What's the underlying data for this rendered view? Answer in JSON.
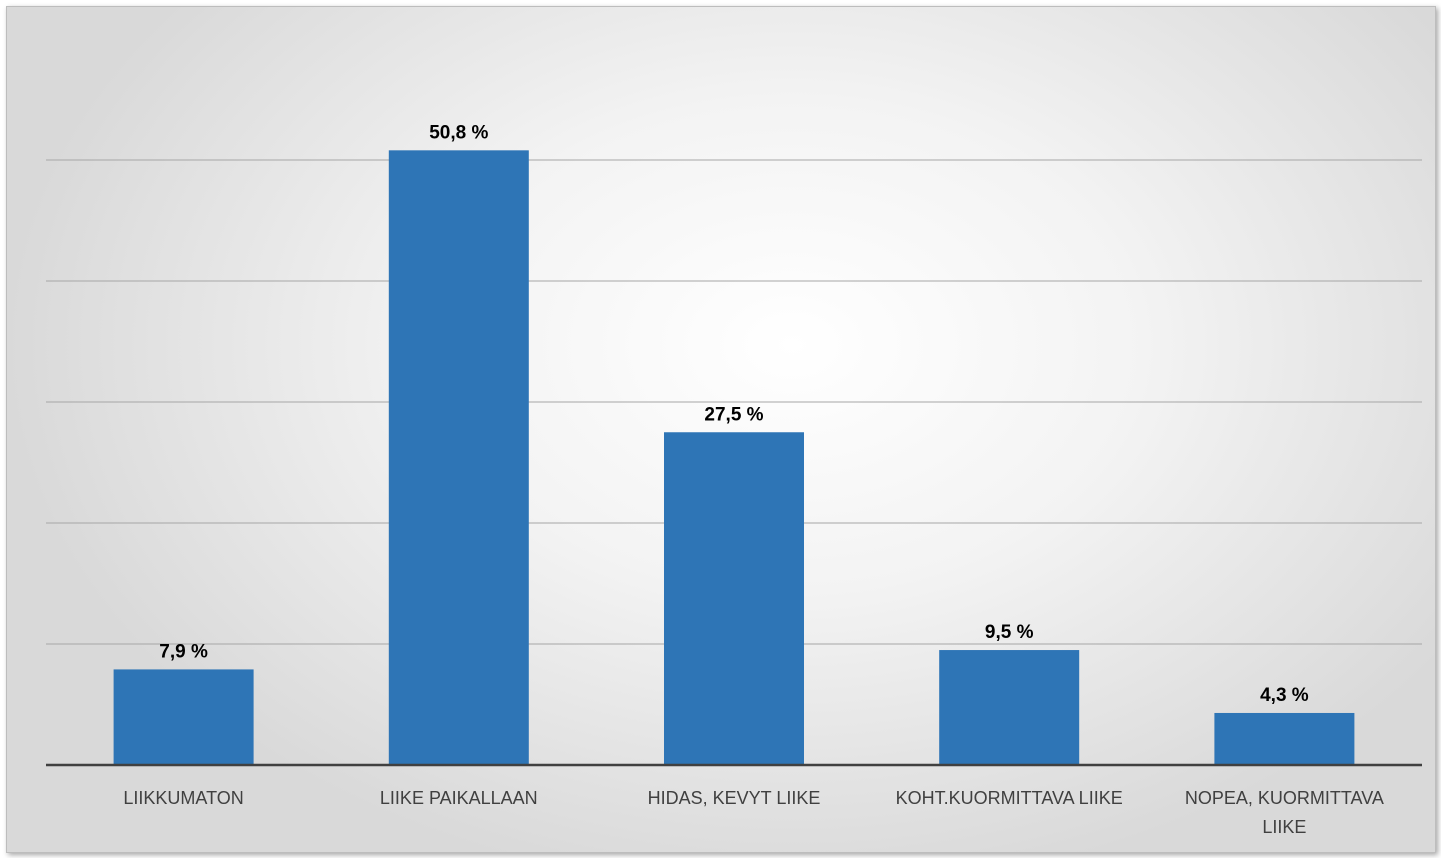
{
  "chart_data": {
    "type": "bar",
    "title": "",
    "xlabel": "",
    "ylabel": "",
    "categories": [
      [
        "LIIKKUMATON"
      ],
      [
        "LIIKE PAIKALLAAN"
      ],
      [
        "HIDAS, KEVYT LIIKE"
      ],
      [
        "KOHT.KUORMITTAVA LIIKE"
      ],
      [
        "NOPEA, KUORMITTAVA",
        "LIIKE"
      ]
    ],
    "values": [
      7.9,
      50.8,
      27.5,
      9.5,
      4.3
    ],
    "value_labels": [
      "7,9 %",
      "50,8 %",
      "27,5 %",
      "9,5 %",
      "4,3 %"
    ],
    "ylim": [
      0,
      50
    ],
    "y_gridlines": [
      10,
      20,
      30,
      40,
      50
    ],
    "grid": true,
    "legend": "none",
    "bar_color": "#2E75B6",
    "gridline_color": "#a6a6a6",
    "axis_color": "#404040"
  }
}
